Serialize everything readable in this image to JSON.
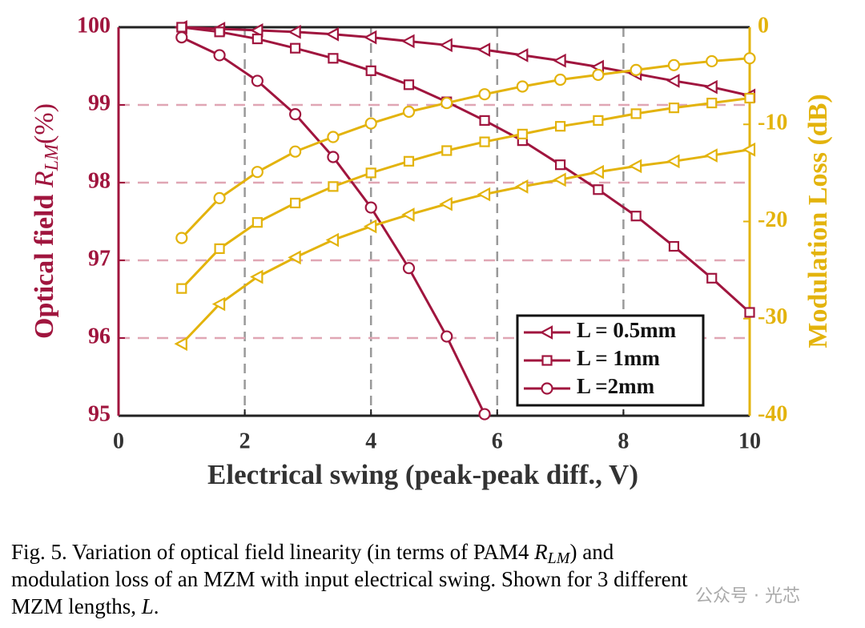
{
  "chart_data": {
    "type": "line",
    "xlabel": "Electrical swing (peak-peak diff., V)",
    "ylabel": {
      "text": "Optical field ",
      "symbol": "R",
      "sub": "LM",
      "unit": "(%)"
    },
    "y2label": "Modulation Loss (dB)",
    "x": [
      1,
      1.6,
      2.2,
      2.8,
      3.4,
      4,
      4.6,
      5.2,
      5.8,
      6.4,
      7,
      7.6,
      8.2,
      8.8,
      9.4,
      10
    ],
    "xlim": [
      0,
      10
    ],
    "xticks": [
      0,
      2,
      4,
      6,
      8,
      10
    ],
    "ylim": [
      95,
      100
    ],
    "yticks": [
      95,
      96,
      97,
      98,
      99,
      100
    ],
    "y2lim": [
      -40,
      0
    ],
    "y2ticks": [
      -40,
      -30,
      -20,
      -10,
      0
    ],
    "grid": true,
    "legend": "lower right",
    "axis_color": "#a0153e",
    "axis2_color": "#e3b30c",
    "series": [
      {
        "name": "L = 0.5mm",
        "color": "#a0153e",
        "marker": "triangle-left",
        "axis": "y",
        "values": [
          100,
          99.98,
          99.96,
          99.94,
          99.91,
          99.87,
          99.82,
          99.77,
          99.71,
          99.64,
          99.57,
          99.49,
          99.4,
          99.31,
          99.23,
          99.12
        ]
      },
      {
        "name": "L = 1mm",
        "color": "#a0153e",
        "marker": "square",
        "axis": "y",
        "values": [
          100,
          99.94,
          99.85,
          99.73,
          99.6,
          99.44,
          99.26,
          99.04,
          98.8,
          98.54,
          98.23,
          97.91,
          97.57,
          97.18,
          96.77,
          96.33
        ]
      },
      {
        "name": "L =2mm",
        "color": "#a0153e",
        "marker": "circle",
        "axis": "y",
        "values": [
          99.87,
          99.64,
          99.31,
          98.88,
          98.33,
          97.68,
          96.9,
          96.02,
          95.02,
          null,
          null,
          null,
          null,
          null,
          null,
          null
        ]
      },
      {
        "color": "#e3b30c",
        "marker": "circle",
        "axis": "y2",
        "values": [
          -21.7,
          -17.6,
          -14.9,
          -12.8,
          -11.3,
          -9.9,
          -8.7,
          -7.8,
          -6.9,
          -6.1,
          -5.4,
          -4.9,
          -4.4,
          -3.9,
          -3.5,
          -3.2
        ]
      },
      {
        "color": "#e3b30c",
        "marker": "square",
        "axis": "y2",
        "values": [
          -26.9,
          -22.8,
          -20.1,
          -18.1,
          -16.4,
          -15.0,
          -13.8,
          -12.7,
          -11.8,
          -11.0,
          -10.2,
          -9.6,
          -8.9,
          -8.3,
          -7.8,
          -7.3
        ]
      },
      {
        "color": "#e3b30c",
        "marker": "triangle-left",
        "axis": "y2",
        "values": [
          -32.6,
          -28.5,
          -25.7,
          -23.7,
          -21.9,
          -20.5,
          -19.3,
          -18.2,
          -17.2,
          -16.4,
          -15.7,
          -14.9,
          -14.3,
          -13.8,
          -13.2,
          -12.6
        ]
      }
    ]
  },
  "caption": {
    "line1_a": "Fig. 5.  Variation of optical field linearity (in terms of PAM4 ",
    "symbol": "R",
    "sub": "LM",
    "line1_b": ") and",
    "line2": "modulation loss of an MZM with input electrical swing. Shown for 3 different",
    "line3_a": "MZM lengths, ",
    "line3_symbol": "L",
    "line3_b": "."
  },
  "watermark": "公众号 · 光芯"
}
